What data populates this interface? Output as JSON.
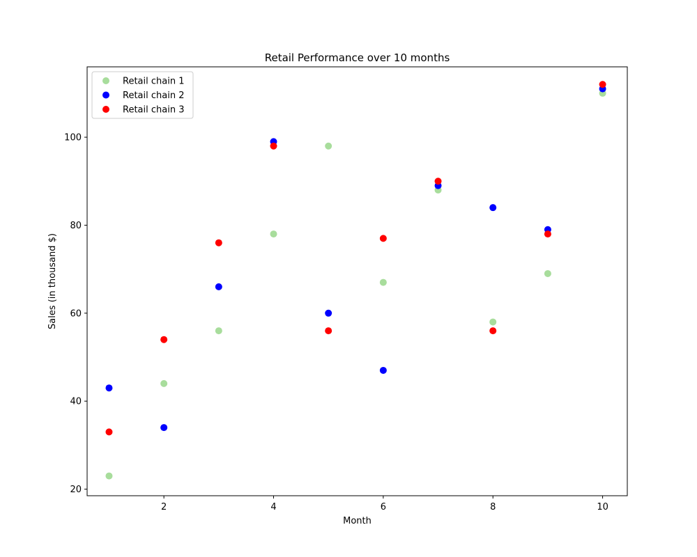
{
  "chart_data": {
    "type": "scatter",
    "title": "Retail Performance over 10 months",
    "xlabel": "Month",
    "ylabel": "Sales (in thousand $)",
    "xlim": [
      0.6,
      10.45
    ],
    "ylim": [
      18.5,
      116
    ],
    "xticks": [
      2,
      4,
      6,
      8,
      10
    ],
    "yticks": [
      20,
      40,
      60,
      80,
      100
    ],
    "grid": false,
    "legend_position": "upper left",
    "x": [
      1,
      2,
      3,
      4,
      5,
      6,
      7,
      8,
      9,
      10
    ],
    "series": [
      {
        "name": "Retail chain 1",
        "color": "#a8dd9c",
        "values": [
          23,
          44,
          56,
          78,
          98,
          67,
          88,
          58,
          69,
          110
        ]
      },
      {
        "name": "Retail chain 2",
        "color": "#0000ff",
        "values": [
          43,
          34,
          66,
          99,
          60,
          47,
          89,
          84,
          79,
          111
        ]
      },
      {
        "name": "Retail chain 3",
        "color": "#ff0000",
        "values": [
          33,
          54,
          76,
          98,
          56,
          77,
          90,
          56,
          78,
          112
        ]
      }
    ]
  }
}
